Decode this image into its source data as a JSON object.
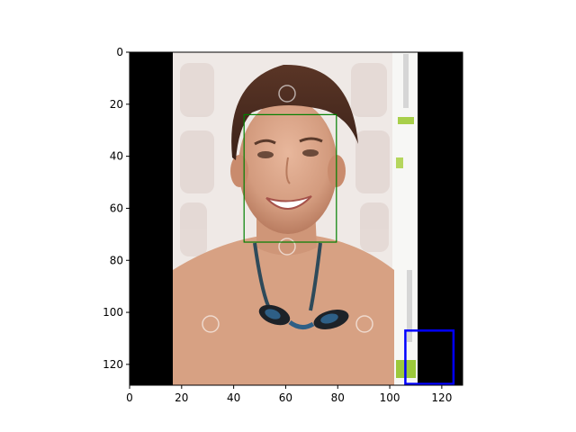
{
  "chart_data": {
    "type": "image",
    "title": "",
    "xlabel": "",
    "ylabel": "",
    "xlim": [
      0,
      128
    ],
    "ylim": [
      128,
      0
    ],
    "xticks": [
      0,
      20,
      40,
      60,
      80,
      100,
      120
    ],
    "yticks": [
      0,
      20,
      40,
      60,
      80,
      100,
      120
    ],
    "image": {
      "description": "photo of a smiling young man, shirtless, wearing swim goggles around his neck, light patterned background",
      "content_x_range": [
        16.5,
        111
      ],
      "padding_color": "#000000"
    },
    "boxes": [
      {
        "name": "face-box",
        "x0": 44,
        "y0": 24,
        "x1": 79.5,
        "y1": 73,
        "color": "#008000"
      },
      {
        "name": "object-box",
        "x0": 106,
        "y0": 107,
        "x1": 124.5,
        "y1": 127.5,
        "color": "#0000ff"
      }
    ]
  }
}
